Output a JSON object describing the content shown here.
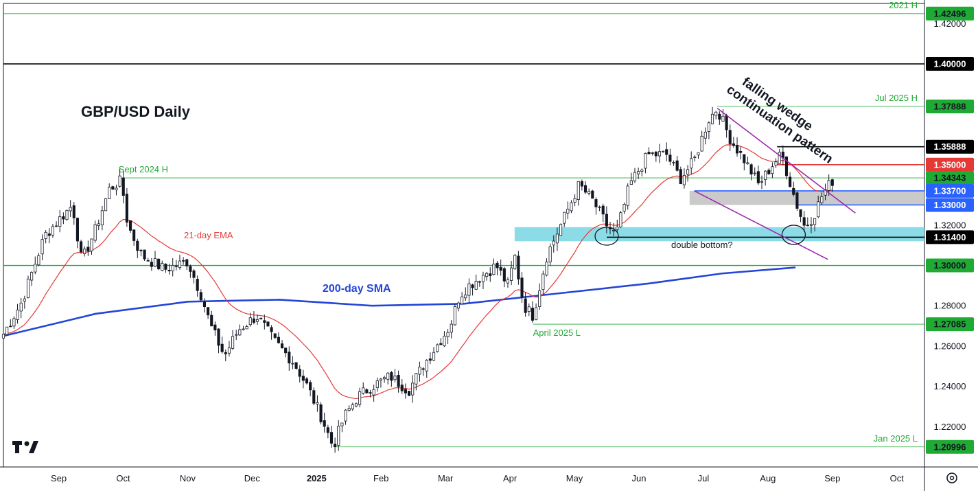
{
  "chart_data": {
    "type": "candlestick",
    "title": "GBP/USD Daily",
    "y_axis": {
      "min": 1.2,
      "max": 1.43,
      "ticks": [
        "1.22000",
        "1.24000",
        "1.26000",
        "1.28000",
        "1.32000",
        "1.42000"
      ]
    },
    "x_axis": {
      "months": [
        {
          "label": "Sep",
          "pos": 0.06
        },
        {
          "label": "Oct",
          "pos": 0.13
        },
        {
          "label": "Nov",
          "pos": 0.2
        },
        {
          "label": "Dec",
          "pos": 0.27
        },
        {
          "label": "2025",
          "pos": 0.34,
          "bold": true
        },
        {
          "label": "Feb",
          "pos": 0.41
        },
        {
          "label": "Mar",
          "pos": 0.48
        },
        {
          "label": "Apr",
          "pos": 0.55
        },
        {
          "label": "May",
          "pos": 0.62
        },
        {
          "label": "Jun",
          "pos": 0.69
        },
        {
          "label": "Jul",
          "pos": 0.76
        },
        {
          "label": "Aug",
          "pos": 0.83
        },
        {
          "label": "Sep",
          "pos": 0.9
        },
        {
          "label": "Oct",
          "pos": 0.97
        }
      ]
    },
    "price_keypoints": [
      [
        0.0,
        1.266
      ],
      [
        0.02,
        1.282
      ],
      [
        0.045,
        1.315
      ],
      [
        0.075,
        1.33
      ],
      [
        0.085,
        1.302
      ],
      [
        0.1,
        1.318
      ],
      [
        0.115,
        1.338
      ],
      [
        0.128,
        1.342
      ],
      [
        0.135,
        1.32
      ],
      [
        0.15,
        1.305
      ],
      [
        0.175,
        1.298
      ],
      [
        0.2,
        1.302
      ],
      [
        0.215,
        1.285
      ],
      [
        0.225,
        1.27
      ],
      [
        0.24,
        1.255
      ],
      [
        0.255,
        1.268
      ],
      [
        0.275,
        1.275
      ],
      [
        0.295,
        1.262
      ],
      [
        0.315,
        1.252
      ],
      [
        0.33,
        1.24
      ],
      [
        0.345,
        1.225
      ],
      [
        0.358,
        1.21
      ],
      [
        0.37,
        1.225
      ],
      [
        0.385,
        1.235
      ],
      [
        0.4,
        1.24
      ],
      [
        0.42,
        1.245
      ],
      [
        0.44,
        1.238
      ],
      [
        0.455,
        1.25
      ],
      [
        0.47,
        1.26
      ],
      [
        0.485,
        1.27
      ],
      [
        0.495,
        1.285
      ],
      [
        0.505,
        1.29
      ],
      [
        0.52,
        1.295
      ],
      [
        0.535,
        1.3
      ],
      [
        0.548,
        1.29
      ],
      [
        0.555,
        1.305
      ],
      [
        0.565,
        1.28
      ],
      [
        0.575,
        1.275
      ],
      [
        0.59,
        1.305
      ],
      [
        0.61,
        1.325
      ],
      [
        0.625,
        1.34
      ],
      [
        0.64,
        1.332
      ],
      [
        0.655,
        1.32
      ],
      [
        0.665,
        1.315
      ],
      [
        0.68,
        1.34
      ],
      [
        0.7,
        1.355
      ],
      [
        0.72,
        1.355
      ],
      [
        0.735,
        1.343
      ],
      [
        0.75,
        1.352
      ],
      [
        0.765,
        1.372
      ],
      [
        0.775,
        1.378
      ],
      [
        0.79,
        1.362
      ],
      [
        0.805,
        1.352
      ],
      [
        0.82,
        1.34
      ],
      [
        0.835,
        1.35
      ],
      [
        0.845,
        1.355
      ],
      [
        0.86,
        1.332
      ],
      [
        0.87,
        1.319
      ],
      [
        0.88,
        1.325
      ],
      [
        0.89,
        1.336
      ],
      [
        0.9,
        1.342
      ]
    ],
    "ema21_label": "21-day EMA",
    "sma200": {
      "label": "200-day SMA",
      "points": [
        [
          0.0,
          1.265
        ],
        [
          0.1,
          1.276
        ],
        [
          0.2,
          1.282
        ],
        [
          0.3,
          1.283
        ],
        [
          0.4,
          1.28
        ],
        [
          0.5,
          1.281
        ],
        [
          0.6,
          1.286
        ],
        [
          0.7,
          1.291
        ],
        [
          0.78,
          1.296
        ],
        [
          0.86,
          1.299
        ]
      ]
    },
    "levels": [
      {
        "value": 1.42496,
        "tag": "1.42496",
        "color": "#1faa34",
        "text_color": "#131722",
        "line": "thin",
        "label": "2021 H",
        "x0": 0.0
      },
      {
        "value": 1.4,
        "tag": "1.40000",
        "color": "#000000",
        "text_color": "#ffffff",
        "line": "thick",
        "x0": 0.0
      },
      {
        "value": 1.37888,
        "tag": "1.37888",
        "color": "#1faa34",
        "text_color": "#131722",
        "line": "thin",
        "label": "Jul 2025 H",
        "x0": 0.775
      },
      {
        "value": 1.35888,
        "tag": "1.35888",
        "color": "#000000",
        "text_color": "#ffffff",
        "line": "thick",
        "x0": 0.84
      },
      {
        "value": 1.35,
        "tag": "1.35000",
        "color": "#e53935",
        "text_color": "#ffffff",
        "line": "thick",
        "x0": 0.84
      },
      {
        "value": 1.34343,
        "tag": "1.34343",
        "color": "#1faa34",
        "text_color": "#131722",
        "line": "thin",
        "label": "Sept 2024 H",
        "x0": 0.128
      },
      {
        "value": 1.337,
        "tag": "1.33700",
        "color": "#2962ff",
        "text_color": "#ffffff",
        "line": "thick",
        "x0": 0.75
      },
      {
        "value": 1.33,
        "tag": "1.33000",
        "color": "#2962ff",
        "text_color": "#ffffff",
        "line": "thick",
        "x0": 0.86
      },
      {
        "value": 1.314,
        "tag": "1.31400",
        "color": "#000000",
        "text_color": "#ffffff",
        "line": "thick",
        "x0": 0.655
      },
      {
        "value": 1.3,
        "tag": "1.30000",
        "color": "#1faa34",
        "text_color": "#131722",
        "line": "medium",
        "x0": 0.0
      },
      {
        "value": 1.27085,
        "tag": "1.27085",
        "color": "#1faa34",
        "text_color": "#131722",
        "line": "thin",
        "label": "April 2025 L",
        "x0": 0.575
      },
      {
        "value": 1.20996,
        "tag": "1.20996",
        "color": "#1faa34",
        "text_color": "#131722",
        "line": "thin",
        "label": "Jan 2025 L",
        "x0": 0.358
      }
    ],
    "zones": [
      {
        "name": "support-zone",
        "y0": 1.312,
        "y1": 1.319,
        "x0": 0.555,
        "x1": 1.0,
        "color": "#7fd8e6"
      },
      {
        "name": "resistance-zone",
        "y0": 1.33,
        "y1": 1.337,
        "x0": 0.745,
        "x1": 1.0,
        "color": "#c4c4c4"
      }
    ],
    "wedge": {
      "label_line1": "falling wedge",
      "label_line2": "continuation pattern",
      "upper": [
        [
          0.775,
          1.378
        ],
        [
          0.925,
          1.326
        ]
      ],
      "lower": [
        [
          0.75,
          1.337
        ],
        [
          0.895,
          1.303
        ]
      ]
    },
    "annotations": {
      "ema_label": "21-day EMA",
      "sma_label": "200-day SMA",
      "double_bottom": "double bottom?"
    }
  },
  "ui": {
    "logo_text": "TV",
    "settings_icon": "gear-icon"
  }
}
